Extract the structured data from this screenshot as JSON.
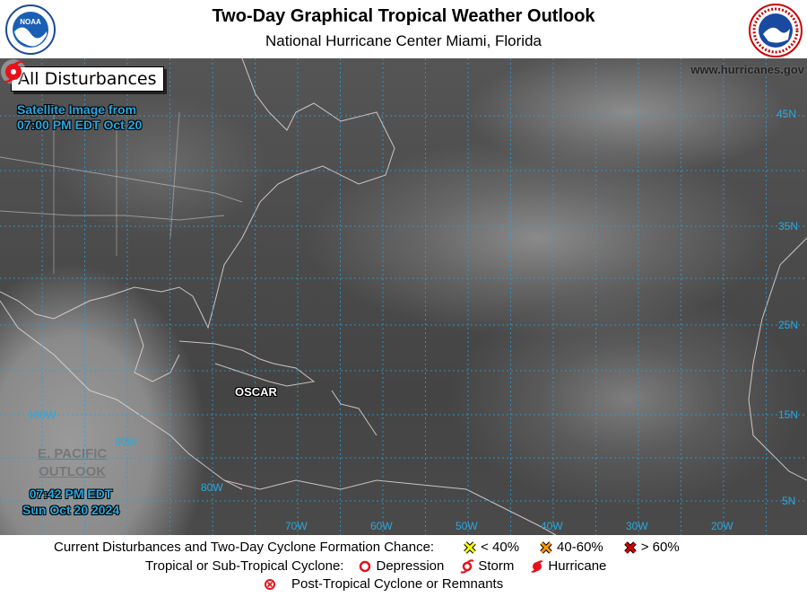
{
  "header": {
    "title": "Two-Day Graphical Tropical Weather Outlook",
    "subtitle": "National Hurricane Center  Miami, Florida",
    "left_logo": "NOAA",
    "right_logo": "NATIONAL WEATHER SERVICE"
  },
  "map": {
    "view_label": "All Disturbances",
    "satellite_line1": "Satellite Image from",
    "satellite_line2": "07:00 PM EDT Oct 20",
    "website": "www.hurricanes.gov",
    "epac_line1": "E. PACIFIC",
    "epac_line2": "OUTLOOK",
    "time_line1": "07:42 PM EDT",
    "time_line2": "Sun Oct 20 2024",
    "lat_labels": [
      "45N",
      "35N",
      "25N",
      "15N",
      "5N"
    ],
    "lon_labels": [
      "100W",
      "90W",
      "80W",
      "70W",
      "60W",
      "50W",
      "40W",
      "30W",
      "20W"
    ],
    "storms": [
      {
        "name": "OSCAR",
        "type": "hurricane",
        "color": "#e8101a"
      }
    ]
  },
  "legend": {
    "row1_label": "Current Disturbances and Two-Day Cyclone Formation Chance:",
    "chances": [
      {
        "label": "< 40%",
        "color": "#ffff00"
      },
      {
        "label": "40-60%",
        "color": "#ff9900"
      },
      {
        "label": "> 60%",
        "color": "#dd0000"
      }
    ],
    "row2_label": "Tropical or Sub-Tropical Cyclone:",
    "cyclones": [
      {
        "label": "Depression",
        "icon": "circle-icon"
      },
      {
        "label": "Storm",
        "icon": "storm-icon"
      },
      {
        "label": "Hurricane",
        "icon": "hurricane-icon"
      }
    ],
    "post_tropical": "Post-Tropical Cyclone or Remnants",
    "icon_color": "#e8101a"
  }
}
